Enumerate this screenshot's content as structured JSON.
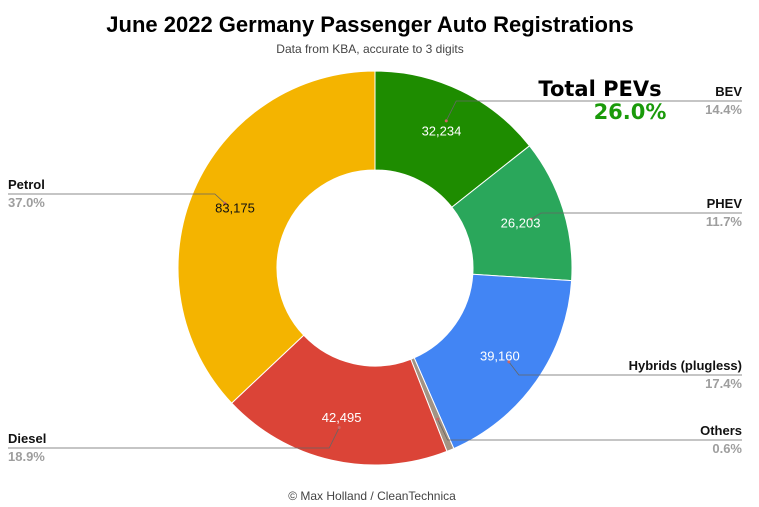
{
  "chart_data": {
    "type": "pie",
    "title": "June 2022 Germany Passenger Auto Registrations",
    "subtitle": "Data from KBA, accurate to 3 digits",
    "donut": true,
    "slices": [
      {
        "label": "BEV",
        "value": 32234,
        "value_label": "32,234",
        "percent": "14.4%",
        "color": "#1e8c00"
      },
      {
        "label": "PHEV",
        "value": 26203,
        "value_label": "26,203",
        "percent": "11.7%",
        "color": "#2aa75b"
      },
      {
        "label": "Hybrids (plugless)",
        "value": 39160,
        "value_label": "39,160",
        "percent": "17.4%",
        "color": "#4285f4"
      },
      {
        "label": "Others",
        "value": 1350,
        "value_label": "",
        "percent": "0.6%",
        "color": "#a39383"
      },
      {
        "label": "Diesel",
        "value": 42495,
        "value_label": "42,495",
        "percent": "18.9%",
        "color": "#db4437"
      },
      {
        "label": "Petrol",
        "value": 83175,
        "value_label": "83,175",
        "percent": "37.0%",
        "color": "#f4b400"
      }
    ],
    "annotation": {
      "title": "Total PEVs",
      "value": "26.0%"
    }
  },
  "footer": "© Max Holland / CleanTechnica"
}
